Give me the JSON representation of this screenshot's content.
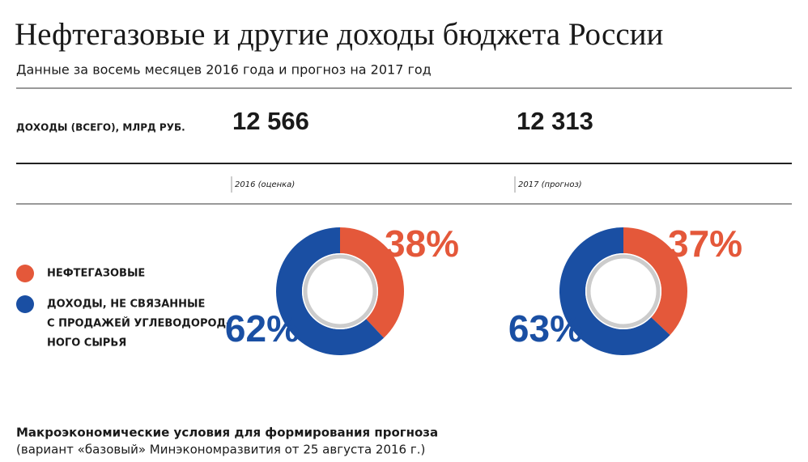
{
  "header": {
    "title": "Нефтегазовые и другие доходы бюджета России",
    "subtitle": "Данные за восемь месяцев 2016 года и прогноз на 2017 год"
  },
  "totals": {
    "label": "ДОХОДЫ (ВСЕГО), МЛРД РУБ.",
    "items": [
      {
        "value": "12 566",
        "period": "2016 (оценка)"
      },
      {
        "value": "12 313",
        "period": "2017 (прогноз)"
      }
    ]
  },
  "legend": [
    {
      "lines": [
        "НЕФТЕГАЗОВЫЕ"
      ],
      "color": "#e4583a"
    },
    {
      "lines": [
        "ДОХОДЫ, НЕ СВЯЗАННЫЕ",
        "С ПРОДАЖЕЙ УГЛЕВОДОРОД-",
        "НОГО СЫРЬЯ"
      ],
      "color": "#1a4fa3"
    }
  ],
  "chart_data": [
    {
      "type": "pie",
      "values": [
        38,
        62
      ],
      "value_labels": [
        "38%",
        "62%"
      ],
      "colors": [
        "#e4583a",
        "#1a4fa3"
      ]
    },
    {
      "type": "pie",
      "values": [
        37,
        63
      ],
      "value_labels": [
        "37%",
        "63%"
      ],
      "colors": [
        "#e4583a",
        "#1a4fa3"
      ]
    }
  ],
  "footer": {
    "title": "Макроэкономические условия для формирования прогноза",
    "note": "(вариант «базовый» Минэкономразвития от 25 августа 2016 г.)"
  }
}
